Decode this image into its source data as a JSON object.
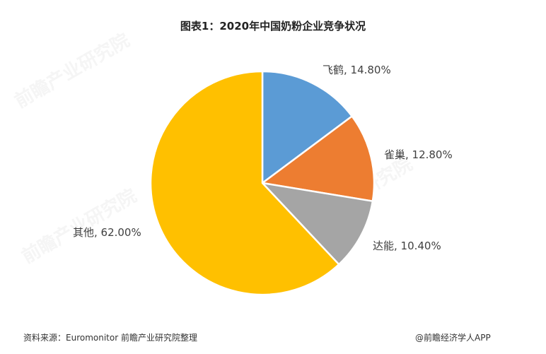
{
  "title": "图表1：2020年中国奶粉企业竞争状况",
  "chart_data": {
    "type": "pie",
    "title": "图表1：2020年中国奶粉企业竞争状况",
    "categories": [
      "飞鹤",
      "雀巢",
      "达能",
      "其他"
    ],
    "values": [
      14.8,
      12.8,
      10.4,
      62.0
    ],
    "unit": "%",
    "colors": [
      "#5B9BD5",
      "#ED7D31",
      "#A5A5A5",
      "#FFC000"
    ],
    "start_angle": "12 o'clock, clockwise",
    "data_labels": [
      "飞鹤, 14.80%",
      "雀巢, 12.80%",
      "达能, 10.40%",
      "其他, 62.00%"
    ],
    "legend": "none"
  },
  "labels": {
    "feihe": "飞鹤, 14.80%",
    "nestle": "雀巢, 12.80%",
    "danone": "达能, 10.40%",
    "other": "其他, 62.00%"
  },
  "watermark": "前瞻产业研究院",
  "footer": {
    "source": "资料来源：Euromonitor 前瞻产业研究院整理",
    "credit": "@前瞻经济学人APP"
  }
}
